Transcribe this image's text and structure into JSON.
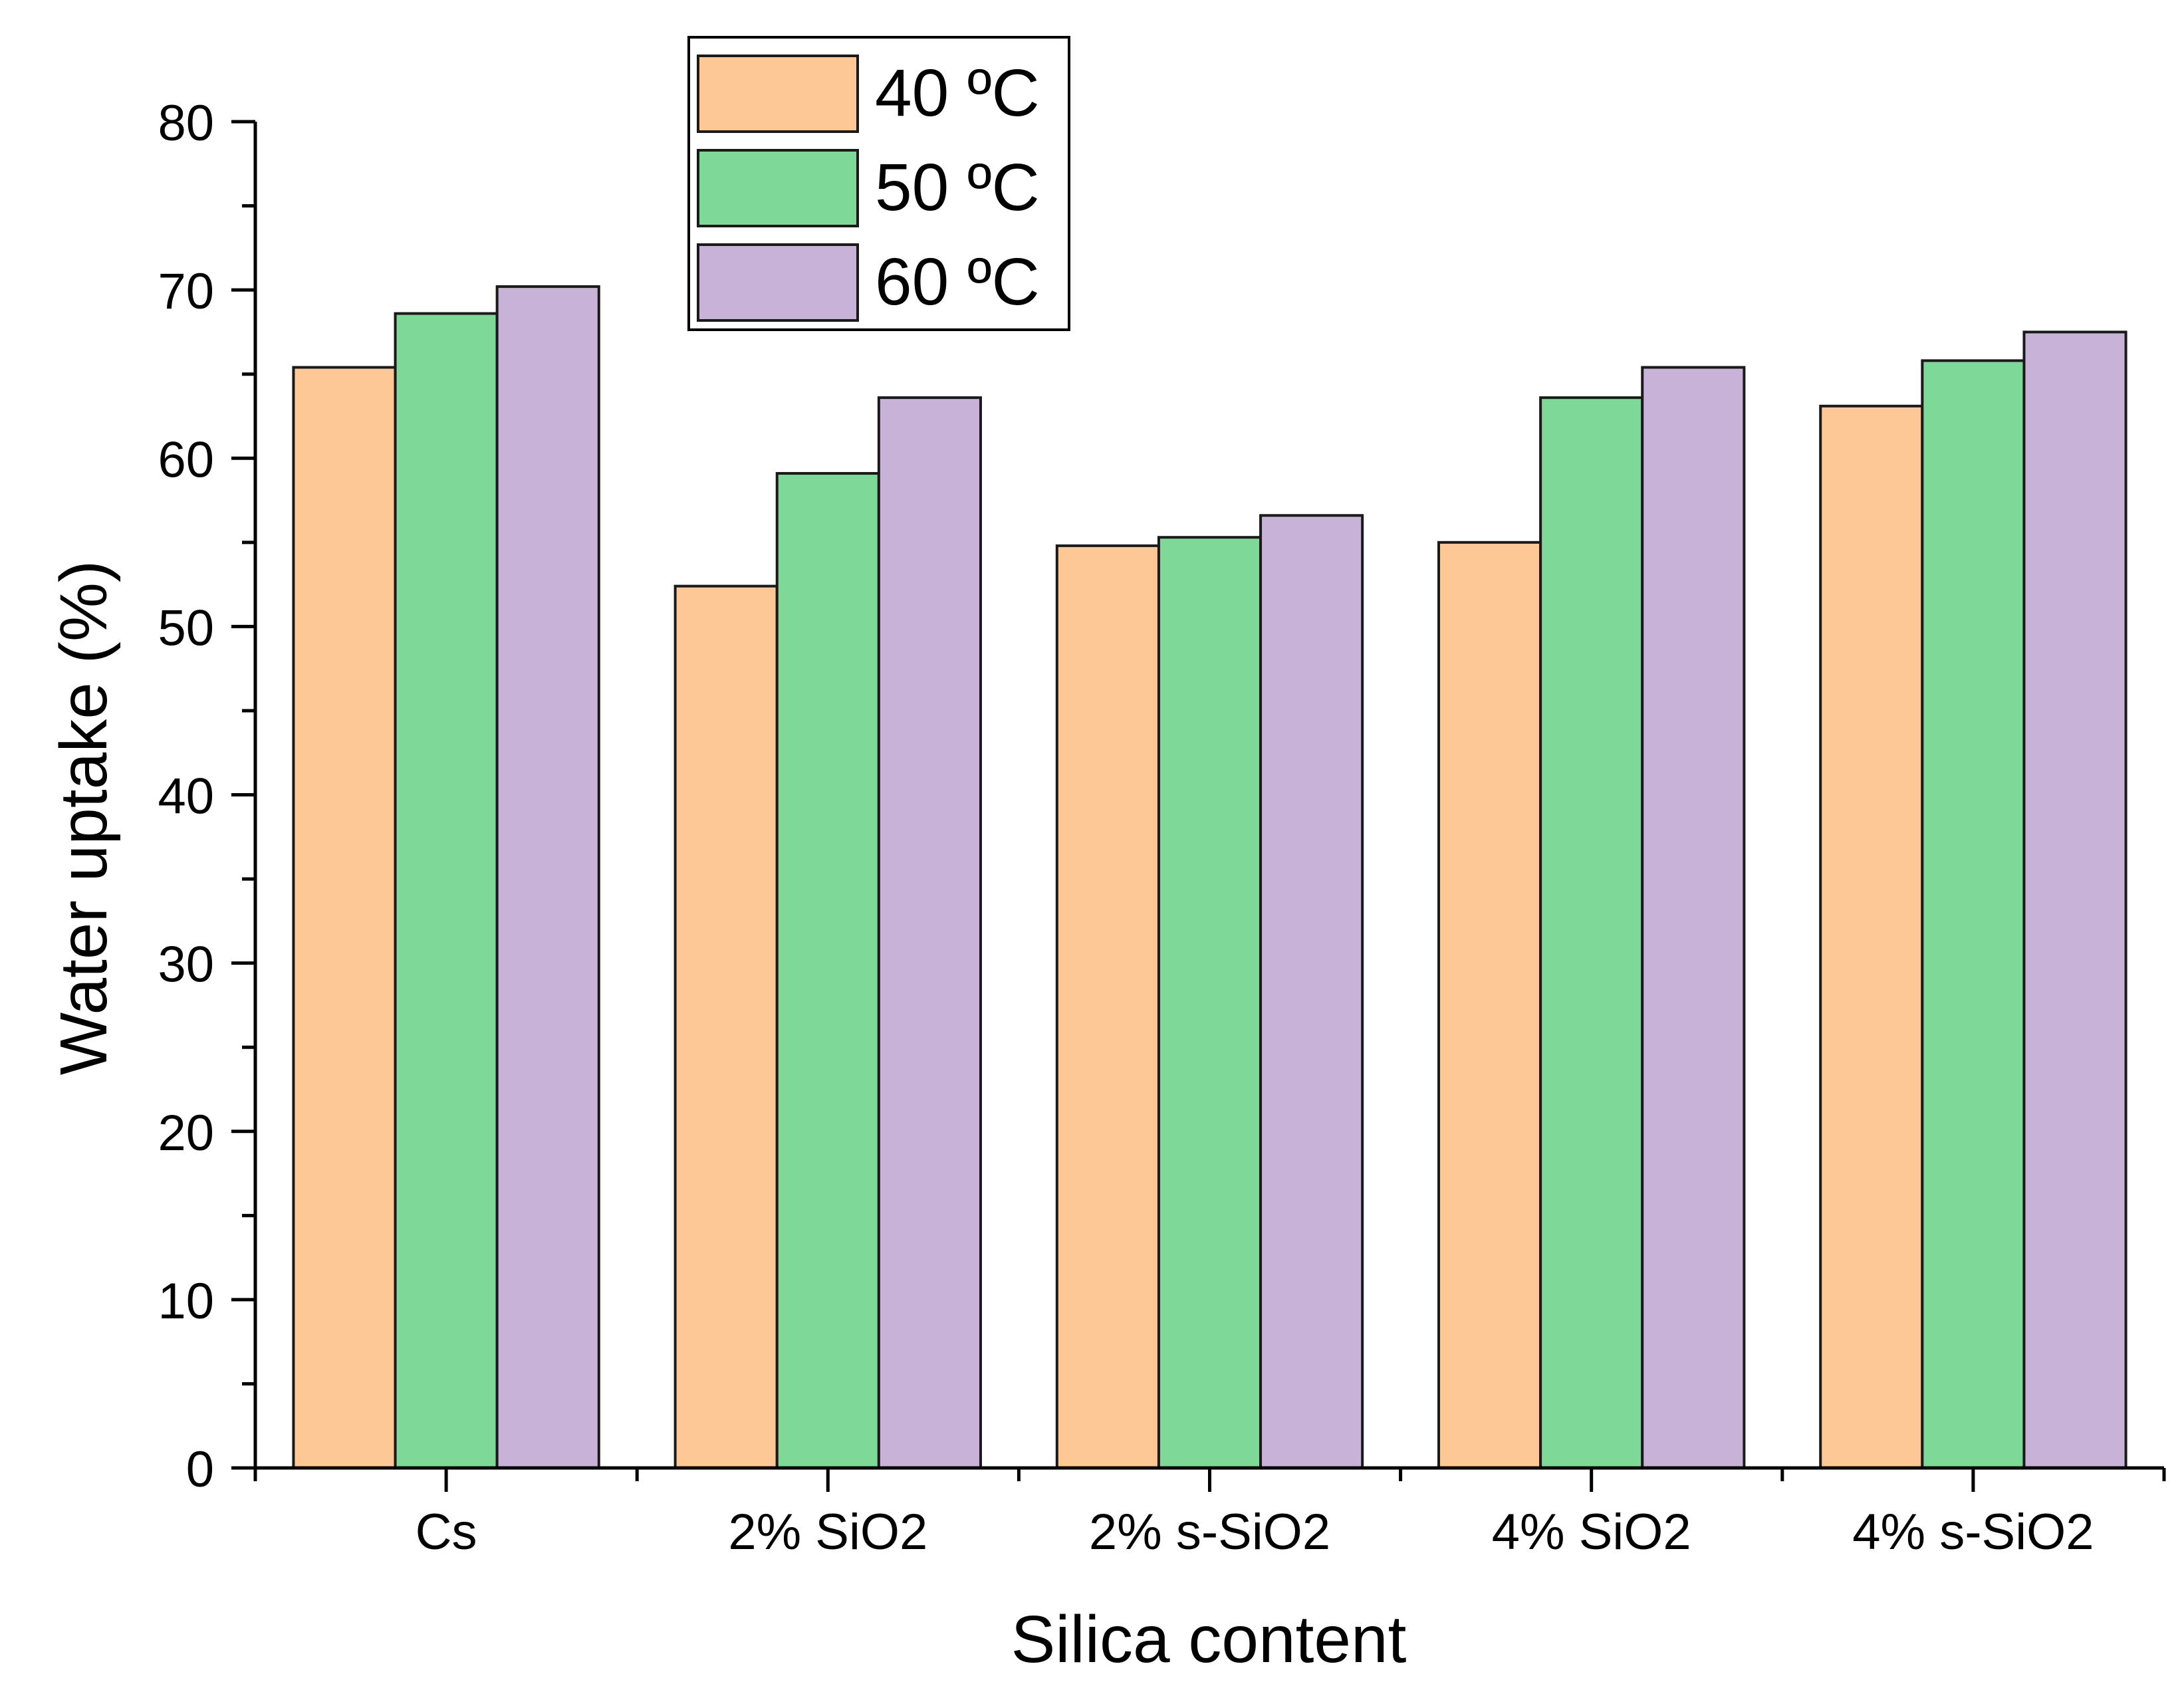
{
  "chart_data": {
    "type": "bar",
    "title": "",
    "xlabel": "Silica content",
    "ylabel": "Water uptake (%)",
    "ylim": [
      0,
      80
    ],
    "yticks": [
      0,
      10,
      20,
      30,
      40,
      50,
      60,
      70,
      80
    ],
    "categories": [
      "Cs",
      "2% SiO2",
      "2% s-SiO2",
      "4% SiO2",
      "4% s-SiO2"
    ],
    "series": [
      {
        "name": "40 ºC",
        "color": "#FEC896",
        "values": [
          65.4,
          52.4,
          54.8,
          55.0,
          63.1
        ]
      },
      {
        "name": "50 ºC",
        "color": "#7ED998",
        "values": [
          68.6,
          59.1,
          55.3,
          63.6,
          65.8
        ]
      },
      {
        "name": "60 ºC",
        "color": "#C8B2D8",
        "values": [
          70.2,
          63.6,
          56.6,
          65.4,
          67.5
        ]
      }
    ],
    "legend_position": "top-left",
    "grid": false
  }
}
